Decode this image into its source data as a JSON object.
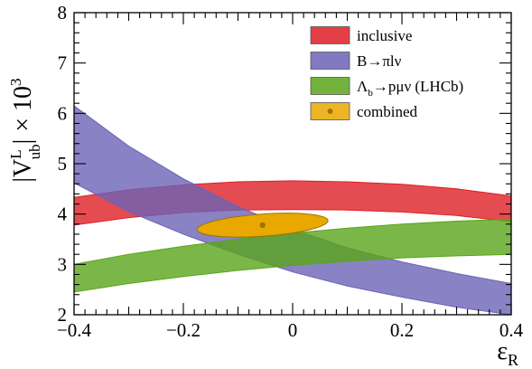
{
  "chart_data": {
    "type": "area",
    "xlabel": "ε",
    "xlabel_sub": "R",
    "ylabel_parts": {
      "bar_open": "|V",
      "sup": "L",
      "sub": "ub",
      "bar_close": "|",
      "times": "× 10",
      "exp": "3"
    },
    "xlim": [
      -0.4,
      0.4
    ],
    "ylim": [
      2,
      8
    ],
    "x_ticks": [
      -0.4,
      -0.2,
      0,
      0.2,
      0.4
    ],
    "x_tick_labels": [
      "−0.4",
      "−0.2",
      "0",
      "0.2",
      "0.4"
    ],
    "y_ticks": [
      2,
      3,
      4,
      5,
      6,
      7,
      8
    ],
    "y_tick_labels": [
      "2",
      "3",
      "4",
      "5",
      "6",
      "7",
      "8"
    ],
    "grid": false,
    "legend_position": "top-right",
    "bands": [
      {
        "key": "inclusive",
        "color": "#dd1f26",
        "x": [
          -0.4,
          -0.3,
          -0.2,
          -0.1,
          0.0,
          0.1,
          0.2,
          0.3,
          0.4
        ],
        "lower": [
          3.78,
          3.93,
          4.03,
          4.08,
          4.09,
          4.08,
          4.04,
          3.97,
          3.85
        ],
        "upper": [
          4.33,
          4.48,
          4.58,
          4.64,
          4.66,
          4.64,
          4.59,
          4.5,
          4.36
        ]
      },
      {
        "key": "b_to_pi_l_nu",
        "color": "#6b63b5",
        "x": [
          -0.4,
          -0.3,
          -0.2,
          -0.1,
          0.0,
          0.1,
          0.2,
          0.3,
          0.4
        ],
        "lower": [
          4.62,
          4.05,
          3.6,
          3.2,
          2.85,
          2.57,
          2.35,
          2.15,
          2.0
        ],
        "upper": [
          6.15,
          5.35,
          4.7,
          4.15,
          3.7,
          3.33,
          3.05,
          2.82,
          2.62
        ]
      },
      {
        "key": "lambda_b_to_p_mu_nu",
        "color": "#5aa51a",
        "x": [
          -0.4,
          -0.3,
          -0.2,
          -0.1,
          0.0,
          0.1,
          0.2,
          0.3,
          0.4
        ],
        "lower": [
          2.45,
          2.62,
          2.76,
          2.88,
          2.98,
          3.06,
          3.13,
          3.17,
          3.2
        ],
        "upper": [
          3.0,
          3.2,
          3.36,
          3.5,
          3.62,
          3.72,
          3.8,
          3.86,
          3.9
        ]
      }
    ],
    "combined": {
      "color": "#e8a800",
      "center": [
        -0.055,
        3.78
      ],
      "x_half_range": 0.12,
      "y_half_range": 0.22,
      "tilt_deg": 4
    },
    "legend": [
      {
        "label": "inclusive",
        "color": "#dd1f26",
        "marker": false
      },
      {
        "label": "B→πlν",
        "color": "#6b63b5",
        "marker": false
      },
      {
        "label": "Λ",
        "sub": "b",
        "label_rest": "→pμν (LHCb)",
        "color": "#5aa51a",
        "marker": false
      },
      {
        "label": "combined",
        "color": "#e8a800",
        "marker": true
      }
    ]
  }
}
